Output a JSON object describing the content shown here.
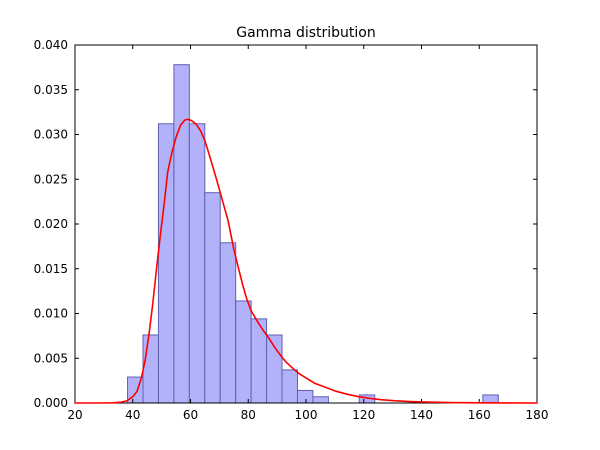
{
  "figure": {
    "background": "#ffffff"
  },
  "chart_data": {
    "type": "bar",
    "subtype": "histogram-with-fit-curve",
    "title": "Gamma distribution",
    "xlabel": "",
    "ylabel": "",
    "xlim": [
      20,
      180
    ],
    "ylim": [
      0,
      0.04
    ],
    "grid": false,
    "legend": null,
    "x_ticks": [
      20,
      40,
      60,
      80,
      100,
      120,
      140,
      160,
      180
    ],
    "x_tick_labels": [
      "20",
      "40",
      "60",
      "80",
      "100",
      "120",
      "140",
      "160",
      "180"
    ],
    "y_ticks": [
      0.0,
      0.005,
      0.01,
      0.015,
      0.02,
      0.025,
      0.03,
      0.035,
      0.04
    ],
    "y_tick_labels": [
      "0.000",
      "0.005",
      "0.010",
      "0.015",
      "0.020",
      "0.025",
      "0.030",
      "0.035",
      "0.040"
    ],
    "histogram": {
      "name": "gamma-samples-histogram",
      "bin_start": 38.2,
      "bin_width": 5.35,
      "values": [
        0.0029,
        0.0076,
        0.0312,
        0.0378,
        0.0312,
        0.0235,
        0.0179,
        0.0114,
        0.0094,
        0.0076,
        0.0037,
        0.0014,
        0.0007,
        0,
        0,
        0.0009,
        0,
        0,
        0,
        0,
        0,
        0,
        0,
        0.0009
      ]
    },
    "series": [
      {
        "name": "gamma-pdf-fit",
        "type": "line",
        "x": [
          20,
          28,
          33,
          36,
          38,
          40,
          41.5,
          43,
          44.3,
          45.6,
          46.9,
          48.2,
          49.5,
          50.9,
          52.1,
          53.5,
          55,
          56.5,
          58,
          59,
          60,
          61,
          62.1,
          63.5,
          65,
          67,
          69,
          71,
          73,
          75,
          76.5,
          78,
          79.5,
          81,
          83,
          85,
          87,
          89,
          91,
          93,
          95,
          97.5,
          100,
          103,
          106,
          110,
          114,
          118,
          122,
          126,
          131,
          136,
          142,
          150,
          160,
          170,
          180
        ],
        "y": [
          0,
          0,
          2e-05,
          0.0001,
          0.00025,
          0.0007,
          0.0013,
          0.0028,
          0.0048,
          0.0076,
          0.011,
          0.0149,
          0.0186,
          0.0223,
          0.0258,
          0.0279,
          0.0297,
          0.031,
          0.0316,
          0.0317,
          0.0316,
          0.0314,
          0.0311,
          0.0304,
          0.0293,
          0.0272,
          0.025,
          0.0227,
          0.0204,
          0.0172,
          0.0152,
          0.0133,
          0.0116,
          0.0103,
          0.0092,
          0.0082,
          0.0073,
          0.0063,
          0.0054,
          0.0046,
          0.004,
          0.0033,
          0.0028,
          0.0022,
          0.00185,
          0.00135,
          0.001,
          0.00072,
          0.00052,
          0.00037,
          0.00024,
          0.00016,
          0.0001,
          5e-05,
          2e-05,
          1e-05,
          0
        ]
      }
    ],
    "colors": {
      "bar_fill": "#b2b2fa",
      "bar_edge": "#6060b0",
      "curve": "#ff0000",
      "axis": "#000000",
      "text": "#000000",
      "background": "#ffffff"
    }
  }
}
